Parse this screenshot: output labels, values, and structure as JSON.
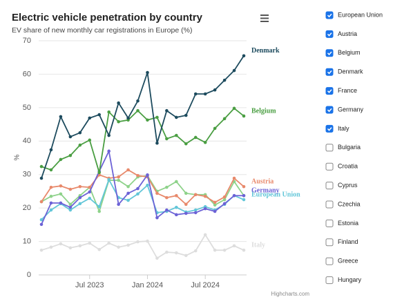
{
  "chart_data": {
    "type": "line",
    "title": "Electric vehicle penetration by country",
    "subtitle": "EV share of new monthly car registrations in Europe (%)",
    "y_label": "%",
    "credits": "Highcharts.com",
    "categories": [
      null,
      null,
      null,
      null,
      null,
      "Jul 2023",
      null,
      null,
      null,
      null,
      null,
      "Jan 2024",
      null,
      null,
      null,
      null,
      null,
      "Jul 2024",
      null,
      null,
      null,
      null
    ],
    "ylim": [
      0,
      70
    ],
    "yticks": [
      0,
      10,
      20,
      30,
      40,
      50,
      60,
      70
    ],
    "grid": true,
    "series": [
      {
        "name": "European Union",
        "color": "#62c6d8",
        "end_label": true,
        "values": [
          16.5,
          19.4,
          21.3,
          19.4,
          21.3,
          22.9,
          20.4,
          28.5,
          23.1,
          22.3,
          24.2,
          26.8,
          18.6,
          19.0,
          20.2,
          18.8,
          19.4,
          20.4,
          19.4,
          21.1,
          23.7,
          22.5
        ]
      },
      {
        "name": "Austria",
        "color": "#e8896b",
        "end_label": true,
        "values": [
          21.9,
          26.2,
          26.6,
          25.6,
          26.4,
          26.2,
          29.9,
          28.9,
          29.3,
          31.4,
          29.7,
          29.3,
          24.4,
          23.1,
          23.7,
          21.1,
          24.0,
          23.5,
          21.7,
          23.3,
          28.9,
          26.4
        ]
      },
      {
        "name": "Belgium",
        "color": "#4a9e42",
        "end_label": true,
        "values": [
          32.4,
          31.4,
          34.5,
          35.7,
          38.8,
          40.3,
          30.6,
          48.7,
          45.8,
          46.3,
          49.1,
          46.3,
          47.1,
          40.7,
          41.7,
          39.2,
          41.1,
          39.6,
          43.8,
          46.7,
          49.8,
          47.5
        ]
      },
      {
        "name": "Denmark",
        "color": "#1d4b5e",
        "end_label": true,
        "values": [
          28.9,
          37.4,
          47.3,
          41.3,
          42.5,
          46.9,
          47.9,
          41.7,
          51.4,
          46.9,
          52.0,
          60.5,
          39.4,
          49.1,
          47.1,
          47.7,
          54.1,
          54.1,
          55.3,
          58.2,
          61.1,
          65.5
        ]
      },
      {
        "name": "France",
        "color": "#8ed28a",
        "end_label": false,
        "values": [
          21.9,
          23.5,
          24.2,
          21.1,
          23.7,
          26.2,
          19.0,
          28.3,
          28.3,
          26.4,
          29.3,
          29.7,
          25.0,
          26.2,
          27.9,
          24.4,
          24.0,
          24.0,
          20.9,
          22.5,
          27.9,
          23.7
        ]
      },
      {
        "name": "Germany",
        "color": "#6c62d6",
        "end_label": true,
        "values": [
          15.1,
          21.5,
          21.5,
          20.2,
          23.1,
          24.8,
          31.0,
          37.0,
          21.1,
          24.4,
          25.8,
          29.9,
          17.1,
          19.4,
          18.0,
          18.4,
          18.6,
          19.8,
          19.0,
          21.3,
          23.7,
          23.7
        ]
      },
      {
        "name": "Italy",
        "color": "#dddddd",
        "end_label": true,
        "values": [
          7.4,
          8.3,
          9.3,
          8.1,
          8.7,
          9.5,
          7.6,
          9.5,
          8.3,
          8.9,
          9.9,
          10.1,
          5.0,
          6.8,
          6.6,
          5.8,
          7.2,
          12.0,
          7.4,
          7.4,
          8.7,
          7.4
        ]
      }
    ],
    "hidden_series": [
      "Bulgaria",
      "Croatia",
      "Cyprus",
      "Czechia",
      "Estonia",
      "Finland",
      "Greece",
      "Hungary"
    ]
  }
}
